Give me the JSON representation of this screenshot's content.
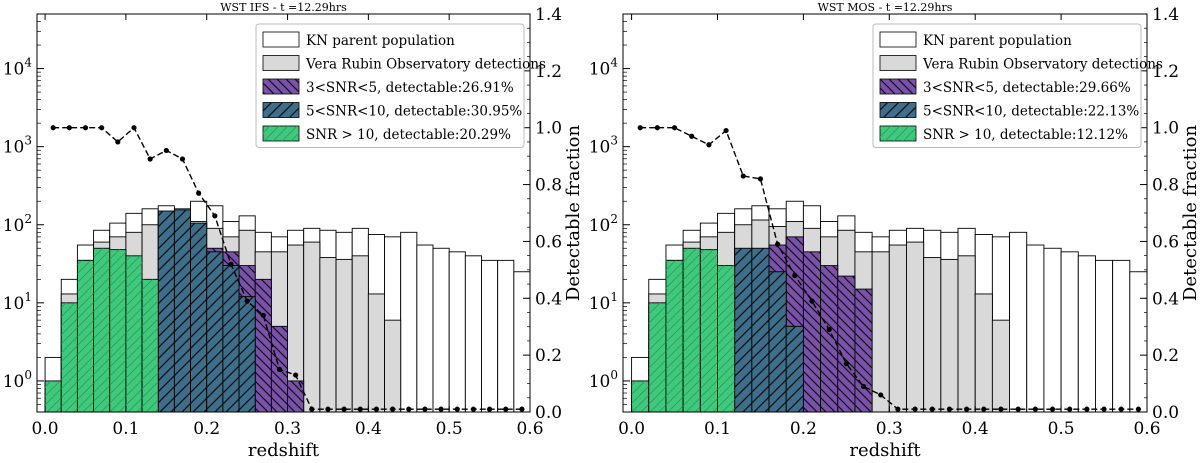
{
  "chart_data": [
    {
      "type": "bar",
      "title": "WST IFS - t =12.29hrs",
      "xlabel": "redshift",
      "ylabel_right": "Detectable fraction",
      "xlim": [
        -0.01,
        0.6
      ],
      "ylim_log": [
        0.4,
        50000
      ],
      "ylim_right": [
        0,
        1.4
      ],
      "xticks": [
        "0.0",
        "0.1",
        "0.2",
        "0.3",
        "0.4",
        "0.5",
        "0.6"
      ],
      "yticks_left": [
        {
          "base": "10",
          "exp": "0"
        },
        {
          "base": "10",
          "exp": "1"
        },
        {
          "base": "10",
          "exp": "2"
        },
        {
          "base": "10",
          "exp": "3"
        },
        {
          "base": "10",
          "exp": "4"
        }
      ],
      "yticks_right": [
        "0.0",
        "0.2",
        "0.4",
        "0.6",
        "0.8",
        "1.0",
        "1.2",
        "1.4"
      ],
      "bin_edges": [
        0.0,
        0.02,
        0.04,
        0.06,
        0.08,
        0.1,
        0.12,
        0.14,
        0.16,
        0.18,
        0.2,
        0.22,
        0.24,
        0.26,
        0.28,
        0.3,
        0.32,
        0.34,
        0.36,
        0.38,
        0.4,
        0.42,
        0.44,
        0.46,
        0.48,
        0.5,
        0.52,
        0.54,
        0.56,
        0.58,
        0.6
      ],
      "legend": [
        "KN parent population",
        "Vera Rubin Observatory detections",
        "3<SNR<5, detectable:26.91%",
        "5<SNR<10, detectable:30.95%",
        "SNR > 10, detectable:20.29%"
      ],
      "series": [
        {
          "name": "KN parent population",
          "values": [
            2,
            20,
            55,
            85,
            105,
            140,
            160,
            175,
            160,
            200,
            175,
            110,
            130,
            80,
            70,
            85,
            90,
            85,
            80,
            90,
            75,
            70,
            80,
            55,
            50,
            45,
            40,
            35,
            35,
            25
          ]
        },
        {
          "name": "Vera Rubin Observatory detections",
          "values": [
            1,
            13,
            35,
            60,
            70,
            80,
            100,
            115,
            95,
            110,
            90,
            70,
            85,
            45,
            45,
            55,
            60,
            38,
            36,
            40,
            13,
            6,
            0,
            0,
            0,
            0,
            0,
            0,
            0,
            0
          ]
        },
        {
          "name": "3<SNR<5",
          "values": [
            0,
            0,
            0,
            0,
            0,
            0,
            0,
            0,
            0,
            0,
            50,
            45,
            30,
            20,
            5,
            1,
            0,
            0,
            0,
            0,
            0,
            0,
            0,
            0,
            0,
            0,
            0,
            0,
            0,
            0
          ]
        },
        {
          "name": "5<SNR<10",
          "values": [
            0,
            0,
            0,
            0,
            0,
            0,
            0,
            150,
            155,
            105,
            45,
            30,
            12,
            0,
            0,
            0,
            0,
            0,
            0,
            0,
            0,
            0,
            0,
            0,
            0,
            0,
            0,
            0,
            0,
            0
          ]
        },
        {
          "name": "SNR > 10",
          "values": [
            1,
            10,
            35,
            50,
            48,
            40,
            20,
            0,
            0,
            0,
            0,
            0,
            0,
            0,
            0,
            0,
            0,
            0,
            0,
            0,
            0,
            0,
            0,
            0,
            0,
            0,
            0,
            0,
            0,
            0
          ]
        },
        {
          "name": "Detectable fraction",
          "x": [
            0.01,
            0.03,
            0.05,
            0.07,
            0.09,
            0.11,
            0.13,
            0.15,
            0.17,
            0.19,
            0.21,
            0.23,
            0.25,
            0.27,
            0.29,
            0.31,
            0.33,
            0.35,
            0.37,
            0.39,
            0.41,
            0.43,
            0.45,
            0.47,
            0.49,
            0.51,
            0.53,
            0.55,
            0.57,
            0.59
          ],
          "values": [
            1.0,
            1.0,
            1.0,
            1.0,
            0.95,
            1.0,
            0.89,
            0.92,
            0.89,
            0.77,
            0.69,
            0.52,
            0.39,
            0.34,
            0.15,
            0.13,
            0.01,
            0.01,
            0.01,
            0.01,
            0.01,
            0.01,
            0.01,
            0.01,
            0.01,
            0.01,
            0.01,
            0.01,
            0.01,
            0.01
          ]
        }
      ]
    },
    {
      "type": "bar",
      "title": "WST MOS - t =12.29hrs",
      "xlabel": "redshift",
      "ylabel_right": "Detectable fraction",
      "xlim": [
        -0.01,
        0.6
      ],
      "ylim_log": [
        0.4,
        50000
      ],
      "ylim_right": [
        0,
        1.4
      ],
      "xticks": [
        "0.0",
        "0.1",
        "0.2",
        "0.3",
        "0.4",
        "0.5",
        "0.6"
      ],
      "yticks_left": [
        {
          "base": "10",
          "exp": "0"
        },
        {
          "base": "10",
          "exp": "1"
        },
        {
          "base": "10",
          "exp": "2"
        },
        {
          "base": "10",
          "exp": "3"
        },
        {
          "base": "10",
          "exp": "4"
        }
      ],
      "yticks_right": [
        "0.0",
        "0.2",
        "0.4",
        "0.6",
        "0.8",
        "1.0",
        "1.2",
        "1.4"
      ],
      "bin_edges": [
        0.0,
        0.02,
        0.04,
        0.06,
        0.08,
        0.1,
        0.12,
        0.14,
        0.16,
        0.18,
        0.2,
        0.22,
        0.24,
        0.26,
        0.28,
        0.3,
        0.32,
        0.34,
        0.36,
        0.38,
        0.4,
        0.42,
        0.44,
        0.46,
        0.48,
        0.5,
        0.52,
        0.54,
        0.56,
        0.58,
        0.6
      ],
      "legend": [
        "KN parent population",
        "Vera Rubin Observatory detections",
        "3<SNR<5, detectable:29.66%",
        "5<SNR<10, detectable:22.13%",
        "SNR > 10, detectable:12.12%"
      ],
      "series": [
        {
          "name": "KN parent population",
          "values": [
            2,
            20,
            55,
            85,
            105,
            140,
            160,
            175,
            160,
            200,
            175,
            110,
            130,
            80,
            70,
            85,
            90,
            85,
            80,
            90,
            75,
            70,
            80,
            55,
            50,
            45,
            40,
            35,
            35,
            25
          ]
        },
        {
          "name": "Vera Rubin Observatory detections",
          "values": [
            1,
            13,
            35,
            60,
            70,
            80,
            100,
            115,
            95,
            110,
            90,
            70,
            85,
            45,
            45,
            55,
            60,
            38,
            36,
            40,
            13,
            6,
            0,
            0,
            0,
            0,
            0,
            0,
            0,
            0
          ]
        },
        {
          "name": "3<SNR<5",
          "values": [
            0,
            0,
            0,
            0,
            0,
            0,
            0,
            0,
            55,
            70,
            45,
            30,
            22,
            15,
            0,
            0,
            0,
            0,
            0,
            0,
            0,
            0,
            0,
            0,
            0,
            0,
            0,
            0,
            0,
            0
          ]
        },
        {
          "name": "5<SNR<10",
          "values": [
            0,
            0,
            0,
            0,
            0,
            0,
            50,
            50,
            25,
            5,
            0,
            0,
            0,
            0,
            0,
            0,
            0,
            0,
            0,
            0,
            0,
            0,
            0,
            0,
            0,
            0,
            0,
            0,
            0,
            0
          ]
        },
        {
          "name": "SNR > 10",
          "values": [
            1,
            10,
            35,
            50,
            48,
            30,
            0,
            0,
            0,
            0,
            0,
            0,
            0,
            0,
            0,
            0,
            0,
            0,
            0,
            0,
            0,
            0,
            0,
            0,
            0,
            0,
            0,
            0,
            0,
            0
          ]
        },
        {
          "name": "Detectable fraction",
          "x": [
            0.01,
            0.03,
            0.05,
            0.07,
            0.09,
            0.11,
            0.13,
            0.15,
            0.17,
            0.19,
            0.21,
            0.23,
            0.25,
            0.27,
            0.29,
            0.31,
            0.33,
            0.35,
            0.37,
            0.39,
            0.41,
            0.43,
            0.45,
            0.47,
            0.49,
            0.51,
            0.53,
            0.55,
            0.57,
            0.59
          ],
          "values": [
            1.0,
            1.0,
            1.0,
            0.97,
            0.94,
            0.99,
            0.83,
            0.82,
            0.59,
            0.48,
            0.39,
            0.29,
            0.17,
            0.09,
            0.06,
            0.01,
            0.01,
            0.01,
            0.01,
            0.01,
            0.01,
            0.01,
            0.01,
            0.01,
            0.01,
            0.01,
            0.01,
            0.01,
            0.01,
            0.01
          ]
        }
      ]
    }
  ],
  "colors": {
    "parent": "#ffffff",
    "rubin": "#d9d9d9",
    "snr_low": "#7b52ab",
    "snr_mid": "#3d6f8c",
    "snr_high": "#3fc97c",
    "line": "#000000"
  }
}
